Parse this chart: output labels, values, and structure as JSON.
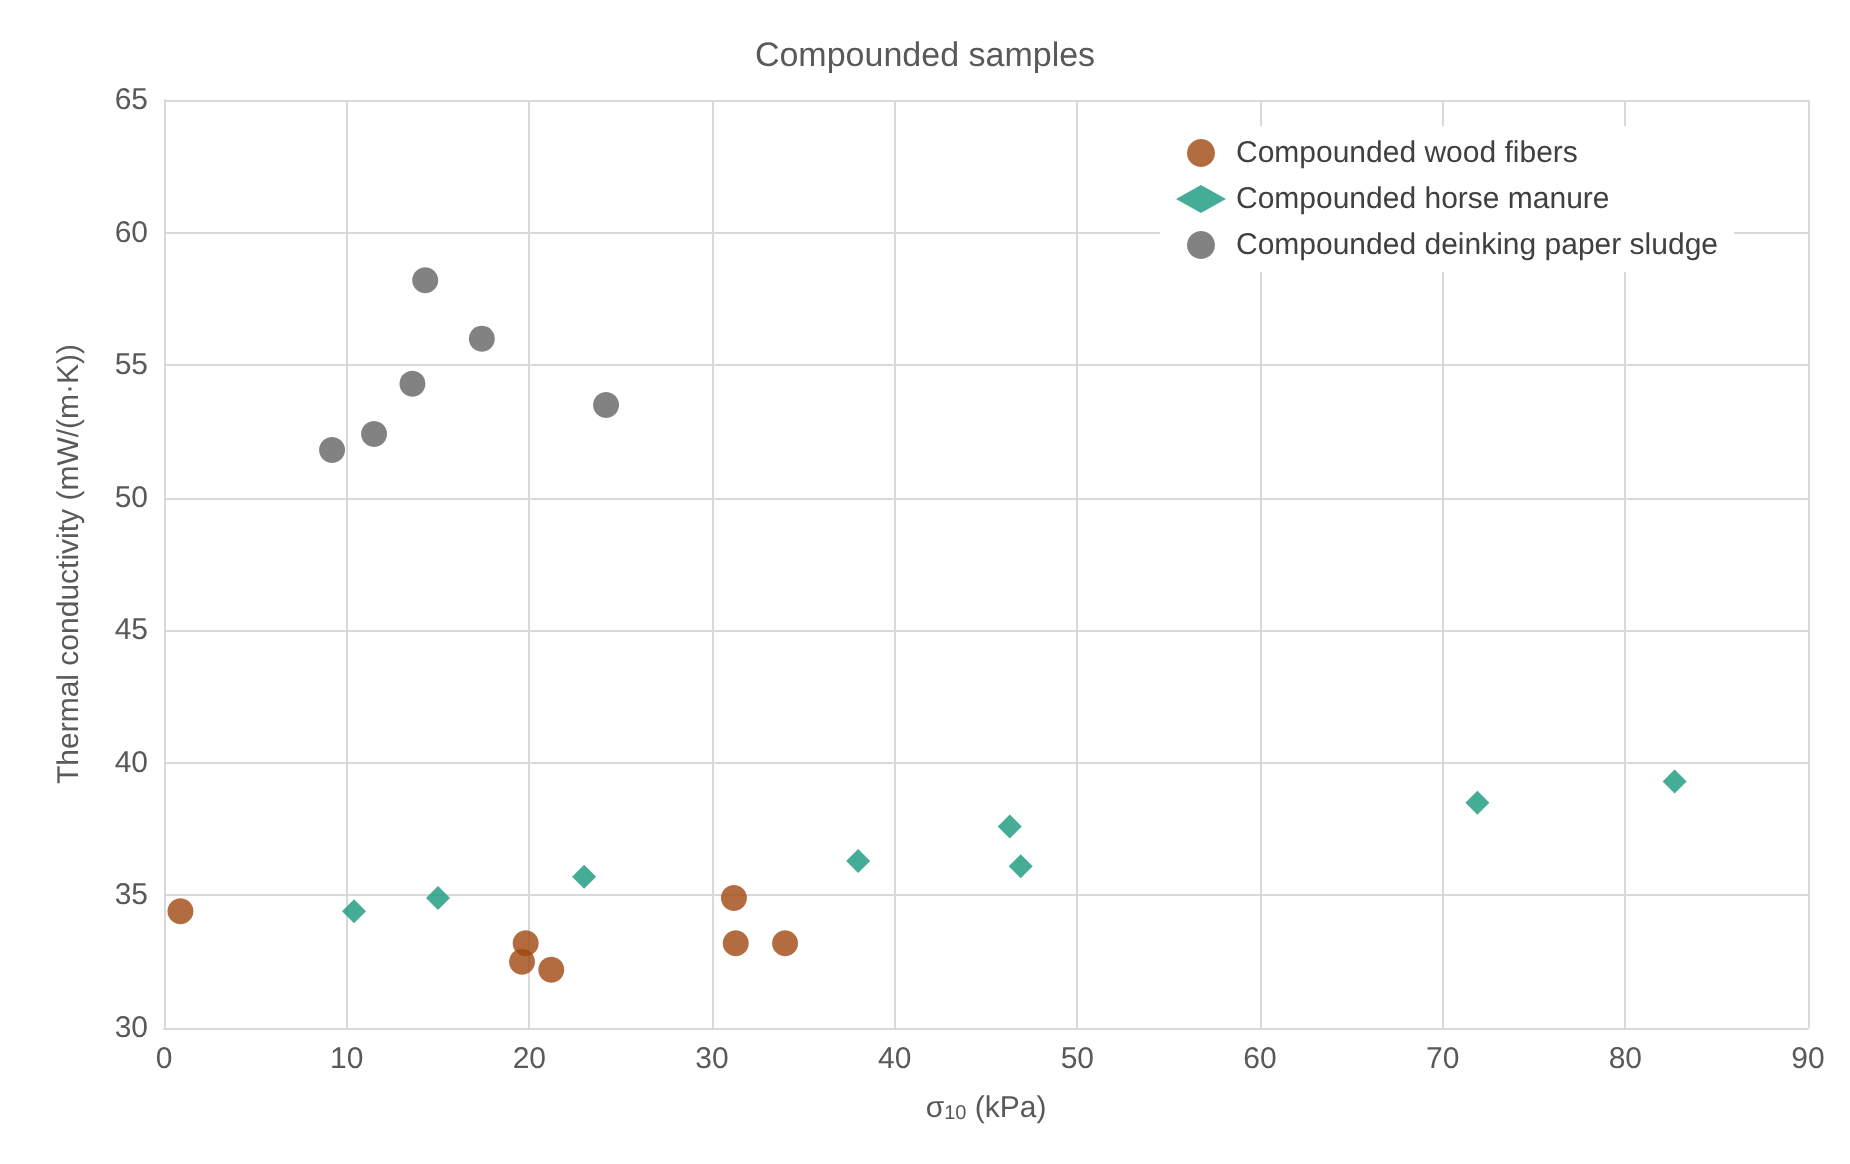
{
  "chart_data": {
    "type": "scatter",
    "title": "Compounded samples",
    "xlabel": "σ$_{10}$ (kPa)",
    "ylabel": "Thermal conductivity (mW/(m·K))",
    "xlim": [
      0,
      90
    ],
    "xticks": [
      0,
      10,
      20,
      30,
      40,
      50,
      60,
      70,
      80,
      90
    ],
    "ylim": [
      30,
      65
    ],
    "yticks": [
      30,
      35,
      40,
      45,
      50,
      55,
      60,
      65
    ],
    "grid": true,
    "legend": "top right",
    "series": [
      {
        "name": "Compounded wood fibers",
        "color": "#a0470f",
        "marker": "circle",
        "x": [
          0.9,
          19.8,
          19.6,
          21.2,
          31.2,
          31.3,
          34.0
        ],
        "values": [
          34.4,
          33.2,
          32.5,
          32.2,
          34.9,
          33.2,
          33.2
        ]
      },
      {
        "name": "Compounded horse manure",
        "color": "#16977a",
        "marker": "diamond",
        "x": [
          10.4,
          15.0,
          23.0,
          38.0,
          46.3,
          46.9,
          71.9,
          82.7
        ],
        "values": [
          34.4,
          34.9,
          35.7,
          36.3,
          37.6,
          36.1,
          38.5,
          39.3
        ]
      },
      {
        "name": "Compounded deinking paper sludge",
        "color": "#636363",
        "marker": "circle",
        "x": [
          9.2,
          11.5,
          13.6,
          14.3,
          17.4,
          24.2
        ],
        "values": [
          51.8,
          52.4,
          54.3,
          58.2,
          56.0,
          53.5
        ]
      }
    ]
  }
}
